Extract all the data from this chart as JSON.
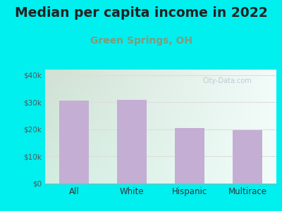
{
  "title": "Median per capita income in 2022",
  "subtitle": "Green Springs, OH",
  "categories": [
    "All",
    "White",
    "Hispanic",
    "Multirace"
  ],
  "values": [
    30500,
    30800,
    20500,
    19800
  ],
  "bar_color": "#c4aed4",
  "title_fontsize": 13.5,
  "subtitle_fontsize": 10,
  "subtitle_color": "#7a9e7e",
  "title_color": "#222222",
  "background_outer": "#00efef",
  "ylim": [
    0,
    42000
  ],
  "yticks": [
    0,
    10000,
    20000,
    30000,
    40000
  ],
  "ytick_labels": [
    "$0",
    "$10k",
    "$20k",
    "$30k",
    "$40k"
  ],
  "watermark": "City-Data.com",
  "watermark_color": "#aabbcc",
  "grid_color": "#dddddd",
  "tick_color": "#555555"
}
